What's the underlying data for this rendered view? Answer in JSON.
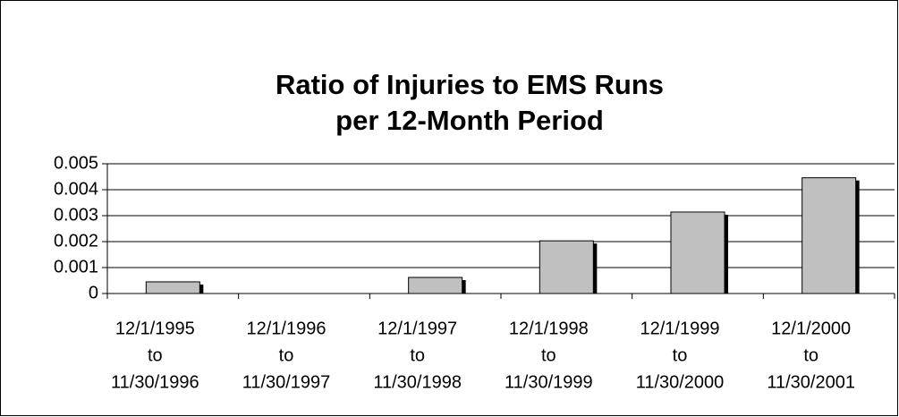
{
  "chart_data": {
    "type": "bar",
    "title": [
      "Ratio of Injuries to EMS Runs",
      "per 12-Month Period"
    ],
    "categories": [
      [
        "12/1/1995",
        "to",
        "11/30/1996"
      ],
      [
        "12/1/1996",
        "to",
        "11/30/1997"
      ],
      [
        "12/1/1997",
        "to",
        "11/30/1998"
      ],
      [
        "12/1/1998",
        "to",
        "11/30/1999"
      ],
      [
        "12/1/1999",
        "to",
        "11/30/2000"
      ],
      [
        "12/1/2000",
        "to",
        "11/30/2001"
      ]
    ],
    "values": [
      0.00045,
      0,
      0.00062,
      0.00203,
      0.00314,
      0.00446
    ],
    "color": "#c0c0c0",
    "ylim": [
      0,
      0.005
    ],
    "yticks": [
      0,
      0.001,
      0.002,
      0.003,
      0.004,
      0.005
    ],
    "grid": true
  }
}
